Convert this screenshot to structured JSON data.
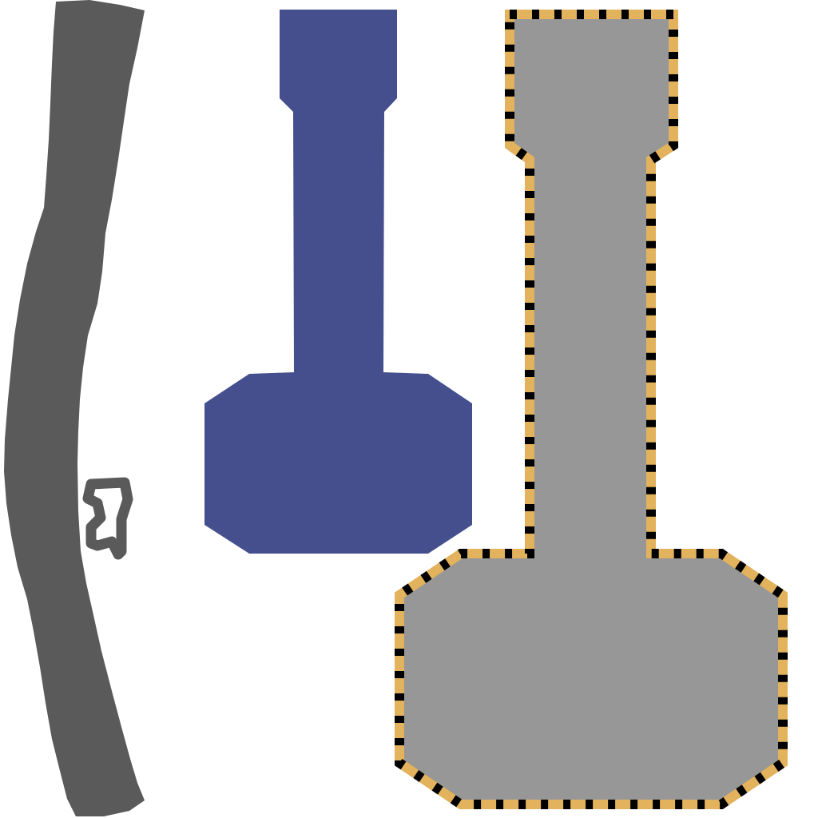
{
  "colors": {
    "background": "#ffffff",
    "dark_strip": "#5a5a5a",
    "blue_shape": "#454f8e",
    "gray_fill": "#979797",
    "stripe_orange": "#e2b25d",
    "stripe_black": "#000000"
  },
  "icons": {
    "small_loop": "hand-drawn-loop-icon"
  }
}
